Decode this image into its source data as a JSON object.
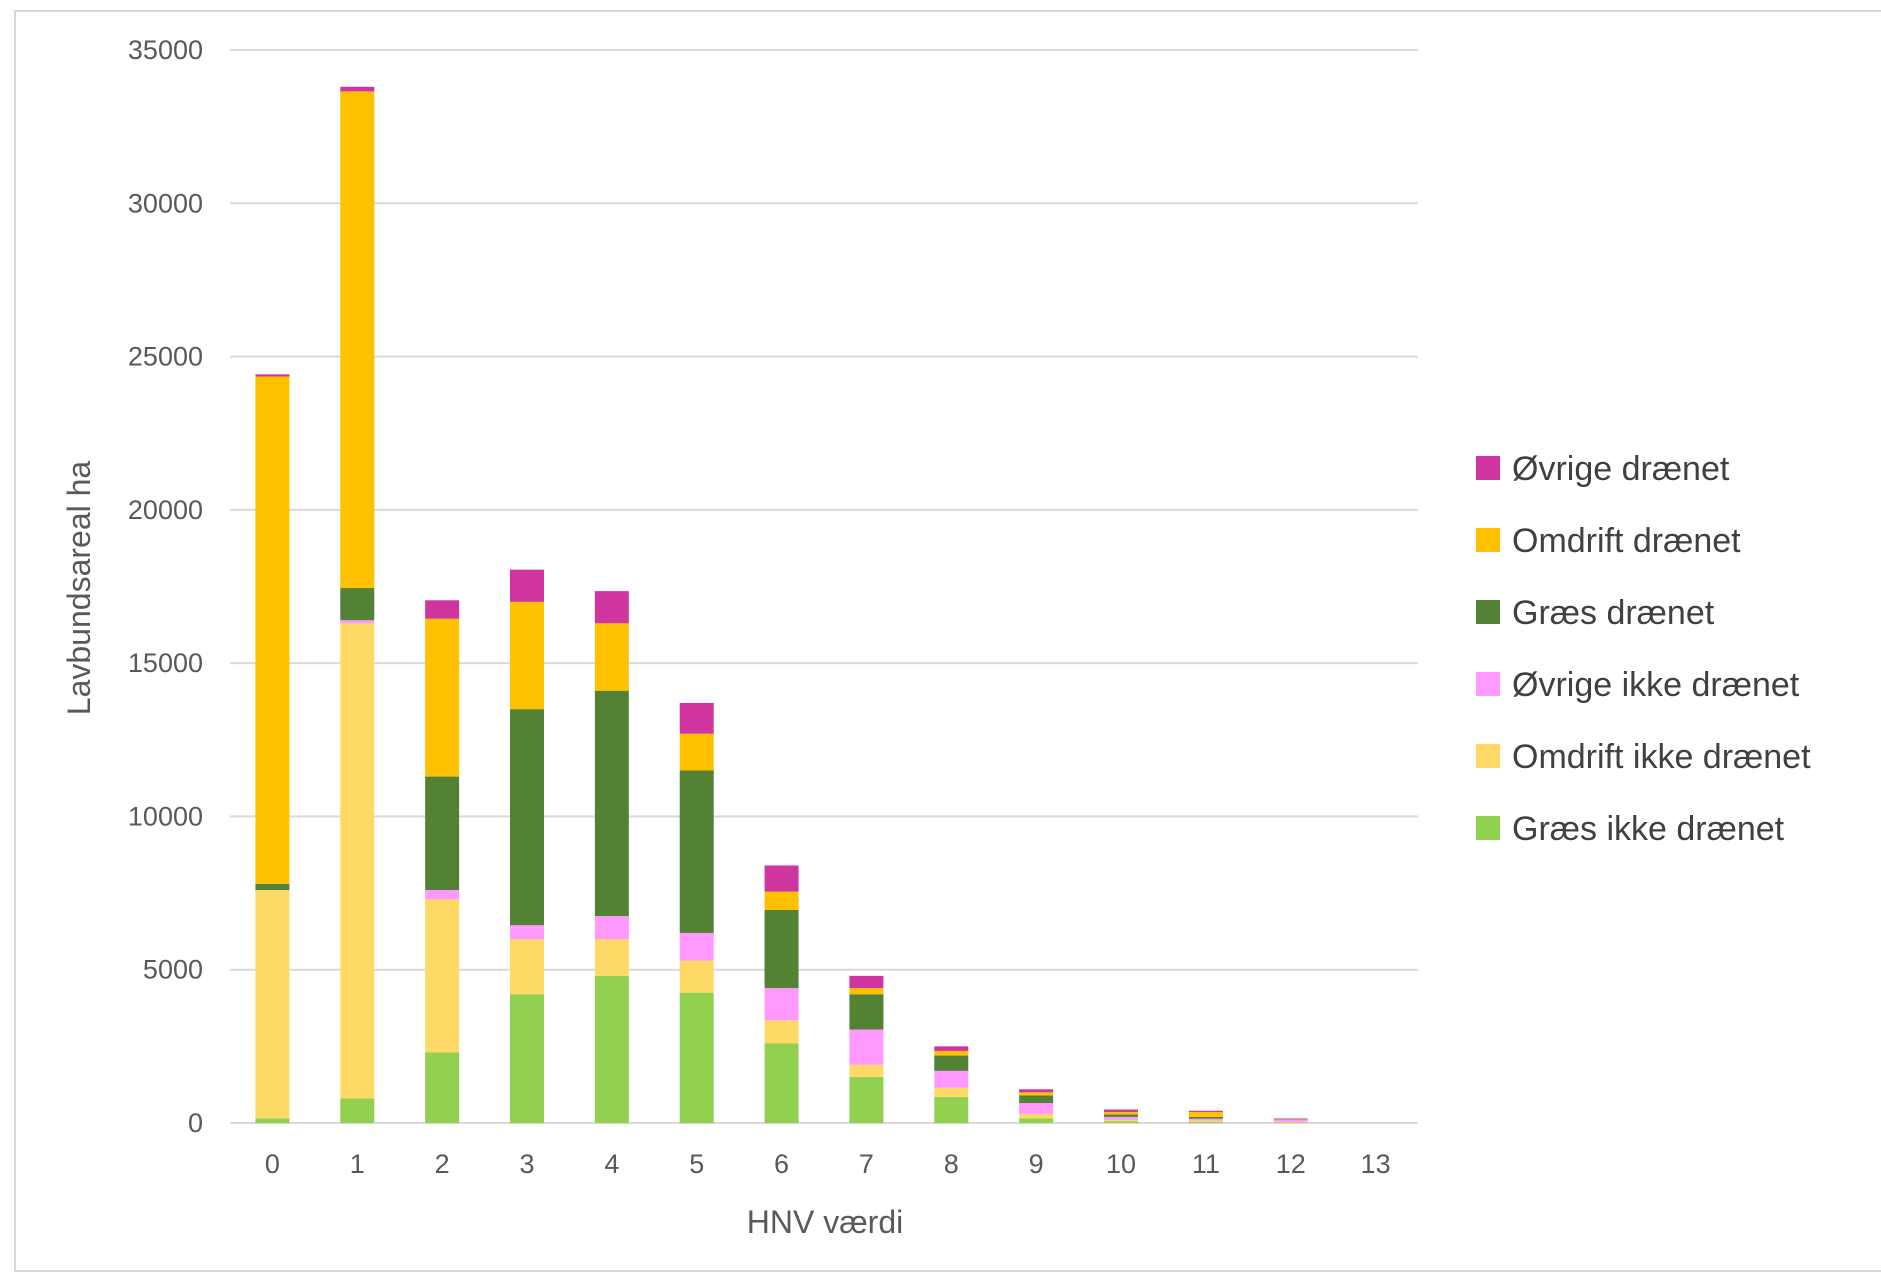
{
  "chart_data": {
    "type": "bar",
    "stacked": true,
    "title": "",
    "xlabel": "HNV værdi",
    "ylabel": "Lavbundsareal ha",
    "ylim": [
      0,
      35000
    ],
    "yticks": [
      "0",
      "5000",
      "10000",
      "15000",
      "20000",
      "25000",
      "30000",
      "35000"
    ],
    "grid": true,
    "legend_position": "right",
    "categories": [
      "0",
      "1",
      "2",
      "3",
      "4",
      "5",
      "6",
      "7",
      "8",
      "9",
      "10",
      "11",
      "12",
      "13"
    ],
    "series": [
      {
        "name": "Græs ikke drænet",
        "color": "#92d050",
        "values": [
          150,
          800,
          2300,
          4200,
          4800,
          4250,
          2600,
          1500,
          850,
          150,
          60,
          40,
          20,
          0
        ]
      },
      {
        "name": "Omdrift ikke drænet",
        "color": "#ffd966",
        "values": [
          7450,
          15500,
          5000,
          1800,
          1200,
          1050,
          750,
          400,
          300,
          150,
          40,
          40,
          20,
          0
        ]
      },
      {
        "name": "Øvrige ikke drænet",
        "color": "#ff99ff",
        "values": [
          0,
          100,
          300,
          450,
          750,
          900,
          1050,
          1150,
          550,
          350,
          100,
          60,
          80,
          0
        ]
      },
      {
        "name": "Græs drænet",
        "color": "#548235",
        "values": [
          200,
          1050,
          3700,
          7050,
          7350,
          5300,
          2550,
          1150,
          500,
          250,
          80,
          60,
          10,
          0
        ]
      },
      {
        "name": "Omdrift drænet",
        "color": "#ffc000",
        "values": [
          16550,
          16200,
          5150,
          3500,
          2200,
          1200,
          600,
          200,
          150,
          100,
          80,
          160,
          10,
          0
        ]
      },
      {
        "name": "Øvrige drænet",
        "color": "#d0359f",
        "values": [
          70,
          150,
          600,
          1050,
          1050,
          1000,
          850,
          400,
          150,
          100,
          80,
          40,
          10,
          0
        ]
      }
    ],
    "legend_order": [
      "Øvrige drænet",
      "Omdrift drænet",
      "Græs drænet",
      "Øvrige ikke drænet",
      "Omdrift ikke drænet",
      "Græs ikke drænet"
    ]
  },
  "colors": {
    "grid": "#d9d9d9",
    "text": "#595959",
    "border": "#d9d9d9"
  }
}
